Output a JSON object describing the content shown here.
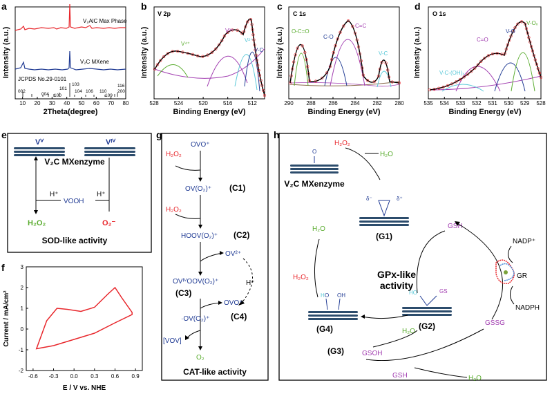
{
  "colors": {
    "red": "#e8262b",
    "blue": "#1f3a93",
    "green": "#5aac2f",
    "purple": "#a13cb0",
    "cyan": "#58c8d8",
    "sheet": "#2c4c6c",
    "brown": "#8a6a4a",
    "olive": "#7ba33a"
  },
  "panels": {
    "a": {
      "label": "a",
      "ylabel": "Intensity (a.u.)",
      "xlabel": "2Theta(degree)",
      "top_trace_label": "V₂AlC Max Phase",
      "bottom_trace_label": "V₂C MXene",
      "ref_label": "JCPDS No.29-0101",
      "peaks": [
        "002",
        "004",
        "100",
        "101",
        "103",
        "104",
        "106",
        "110",
        "109",
        "116",
        "200"
      ]
    },
    "b": {
      "label": "b",
      "title": "V 2p",
      "ylabel": "Intensity (a.u.)",
      "xlabel": "Binding Energy (eV)",
      "peaks": [
        "V⁴⁺",
        "V³⁺",
        "V²⁺",
        "V-C"
      ]
    },
    "c": {
      "label": "c",
      "title": "C 1s",
      "ylabel": "Intensity (a.u.)",
      "xlabel": "Binding Energy (eV)",
      "peaks": [
        "O-C=O",
        "C-O",
        "C=C",
        "V-C"
      ]
    },
    "d": {
      "label": "d",
      "title": "O 1s",
      "ylabel": "Intensity (a.u.)",
      "xlabel": "Binding Energy (eV)",
      "peaks": [
        "C=O",
        "V-O",
        "V-Oₓ",
        "V-C-(OH)ₓ"
      ]
    },
    "e": {
      "label": "e",
      "v5": "Vⱽ",
      "v4": "Vᴵⱽ",
      "enzyme": "V₂C MXenzyme",
      "h1": "H⁺",
      "h2": "H⁺",
      "vooh": "VOOH",
      "h2o2": "H₂O₂",
      "o2": "O₂⁻",
      "title": "SOD-like activity"
    },
    "f": {
      "label": "f",
      "ylabel": "Current / mA/cm²",
      "xlabel": "E / V vs. NHE"
    },
    "g": {
      "label": "g",
      "ovo": "OVO⁺",
      "h2o2a": "H₂O₂",
      "c1": "OV(O₂)⁺",
      "c1lbl": "(C1)",
      "h2o2b": "H₂O₂",
      "c2": "HOOV(O₂)⁺",
      "c2lbl": "(C2)",
      "ov2": "OV²⁺",
      "c3": "OVᴵⱽOOV(O₂)⁺",
      "c3lbl": "(C3)",
      "hplus": "H⁺",
      "ovo2": "OVO⁺",
      "c4": "·OV(O₂)⁺",
      "c4lbl": "(C4)",
      "vov": "[VOV]",
      "o2": "O₂",
      "title": "CAT-like activity"
    },
    "h": {
      "label": "h",
      "enzyme": "V₂C MXenzyme",
      "h2o2a": "H₂O₂",
      "h2oa": "H₂O",
      "g1": "(G1)",
      "g2": "(G2)",
      "g3": "(G3)",
      "g4": "(G4)",
      "h2ob": "H₂O",
      "h2o2b": "H₂O₂",
      "gsh1": "GSH",
      "nadp": "NADP⁺",
      "gr": "GR",
      "nadph": "NADPH",
      "gpx1": "GPx-like",
      "gpx2": "activity",
      "h2oc": "H₂O",
      "gsoh": "GSOH",
      "gssg": "GSSG",
      "gsh2": "GSH",
      "h2od": "H₂O",
      "dminus": "δ⁻",
      "dplus": "δ⁺",
      "o": "O",
      "v": "V",
      "ho": "HO",
      "gs": "GS",
      "h": "H",
      "oh": "OH"
    }
  },
  "chart_data": [
    {
      "panel": "a",
      "type": "line",
      "title": "",
      "xlabel": "2Theta(degree)",
      "ylabel": "Intensity (a.u.)",
      "xlim": [
        5,
        80
      ],
      "x_ticks": [
        10,
        20,
        30,
        40,
        50,
        60,
        70,
        80
      ],
      "series": [
        {
          "name": "V₂AlC Max Phase",
          "peaks_2theta": [
            13.5,
            41.3,
            55.5
          ]
        },
        {
          "name": "V₂C MXene",
          "peaks_2theta": [
            13.5,
            41.3
          ]
        }
      ]
    },
    {
      "panel": "b",
      "type": "line",
      "title": "V 2p",
      "xlabel": "Binding Energy (eV)",
      "ylabel": "Intensity (a.u.)",
      "xlim": [
        528,
        510
      ],
      "x_ticks": [
        528,
        524,
        520,
        516,
        512
      ],
      "series": [
        {
          "name": "V⁴⁺",
          "center": 522.5
        },
        {
          "name": "V³⁺",
          "center": 516.0
        },
        {
          "name": "V²⁺",
          "center": 514.5
        },
        {
          "name": "V-C",
          "center": 513.0
        }
      ]
    },
    {
      "panel": "c",
      "type": "line",
      "title": "C 1s",
      "xlabel": "Binding Energy (eV)",
      "ylabel": "Intensity (a.u.)",
      "xlim": [
        290,
        280
      ],
      "x_ticks": [
        290,
        288,
        286,
        284,
        282,
        280
      ],
      "series": [
        {
          "name": "O-C=O",
          "center": 289.0
        },
        {
          "name": "C-O",
          "center": 286.0
        },
        {
          "name": "C=C",
          "center": 284.8
        },
        {
          "name": "V-C",
          "center": 282.0
        }
      ]
    },
    {
      "panel": "d",
      "type": "line",
      "title": "O 1s",
      "xlabel": "Binding Energy (eV)",
      "ylabel": "Intensity (a.u.)",
      "xlim": [
        535,
        528
      ],
      "x_ticks": [
        535,
        534,
        533,
        532,
        531,
        530,
        529,
        528
      ],
      "series": [
        {
          "name": "V-C-(OH)ₓ",
          "center": 532.5
        },
        {
          "name": "C=O",
          "center": 531.3
        },
        {
          "name": "V-O",
          "center": 530.0
        },
        {
          "name": "V-Oₓ",
          "center": 529.2
        }
      ]
    },
    {
      "panel": "f",
      "type": "line",
      "title": "",
      "xlabel": "E / V vs. NHE",
      "ylabel": "Current / mA/cm²",
      "xlim": [
        -0.7,
        1.0
      ],
      "ylim": [
        -2,
        3
      ],
      "x_ticks": [
        "-0.6",
        "-0.3",
        "0.0",
        "0.3",
        "0.6",
        "0.9"
      ],
      "y_ticks": [
        "-2",
        "-1",
        "0",
        "1",
        "2",
        "3"
      ],
      "series": [
        {
          "name": "CV",
          "x": [
            -0.55,
            -0.4,
            -0.25,
            -0.1,
            0.1,
            0.3,
            0.5,
            0.6,
            0.7,
            0.85,
            0.85,
            0.6,
            0.3,
            0.0,
            -0.3,
            -0.55
          ],
          "y": [
            -0.95,
            0.4,
            1.0,
            0.95,
            0.85,
            1.05,
            1.7,
            2.0,
            1.5,
            0.8,
            0.7,
            0.3,
            -0.2,
            -0.5,
            -0.8,
            -0.95
          ]
        }
      ]
    }
  ]
}
